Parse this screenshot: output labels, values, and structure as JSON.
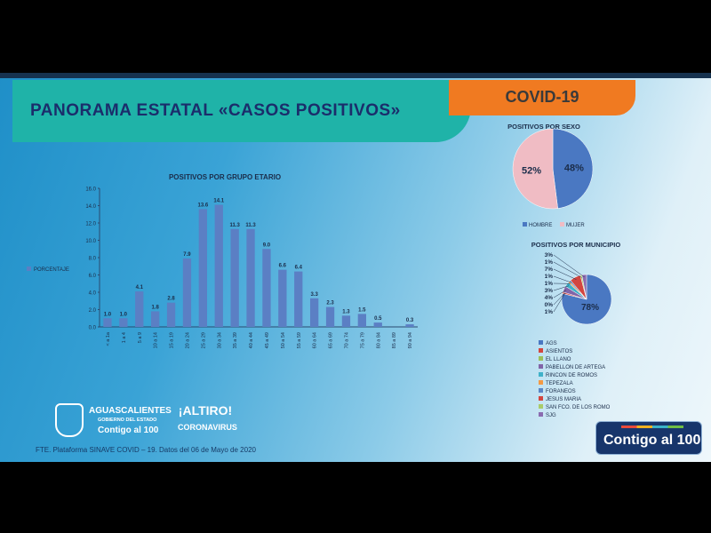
{
  "header": {
    "title": "PANORAMA ESTATAL «CASOS POSITIVOS»",
    "tab": "COVID-19"
  },
  "footer": {
    "source": "FTE. Plataforma SINAVE COVID – 19. Datos del 06 de Mayo de 2020",
    "gov_name": "AGUASCALIENTES",
    "gov_sub": "GOBIERNO DEL ESTADO",
    "gov_slogan": "Contigo al 100",
    "campaign_line1": "¡ALTIRO!",
    "campaign_line2": "CORONAVIRUS",
    "badge": "Contigo al 100"
  },
  "colors": {
    "bar": "#5b7fc4",
    "hombre": "#4a78c2",
    "mujer": "#f0bcc4",
    "title": "#1b2d6b",
    "banner": "#1fb3a8",
    "tab": "#f07a21"
  },
  "chart_data": [
    {
      "type": "bar",
      "title": "POSITIVOS POR GRUPO ETARIO",
      "legend": "PORCENTAJE",
      "legend_placement": "left",
      "categories": [
        "< a 1a",
        "1 a 4",
        "5 a 9",
        "10 a 14",
        "15 a 19",
        "20 a 24",
        "25 a 29",
        "30 a 34",
        "35 a 39",
        "40 a 44",
        "45 a 49",
        "50 a 54",
        "55 a 59",
        "60 a 64",
        "65 a 69",
        "70 a 74",
        "75 a 79",
        "80 a 84",
        "85 a 89",
        "90 a 94"
      ],
      "values": [
        1.0,
        1.0,
        4.1,
        1.8,
        2.8,
        7.9,
        13.6,
        14.1,
        11.3,
        11.3,
        9.0,
        6.6,
        6.4,
        3.3,
        2.3,
        1.3,
        1.5,
        0.5,
        null,
        0.3
      ],
      "data_labels": [
        "1.0",
        "1.0",
        "4.1",
        "1.8",
        "2.8",
        "7.9",
        "13.6",
        "14.1",
        "11.3",
        "11.3",
        "9.0",
        "6.6",
        "6.4",
        "3.3",
        "2.3",
        "1.3",
        "1.5",
        "0.5",
        "",
        "0.3"
      ],
      "yticks": [
        "0.0",
        "2.0",
        "4.0",
        "6.0",
        "8.0",
        "10.0",
        "12.0",
        "14.0",
        "16.0"
      ],
      "ylim": [
        0,
        16
      ],
      "grid": false
    },
    {
      "type": "pie",
      "title": "POSITIVOS POR SEXO",
      "legend_placement": "bottom",
      "slices": [
        {
          "name": "HOMBRE",
          "value": 48,
          "label": "48%",
          "color": "#4a78c2"
        },
        {
          "name": "MUJER",
          "value": 52,
          "label": "52%",
          "color": "#f0bcc4"
        }
      ]
    },
    {
      "type": "pie",
      "title": "POSITIVOS POR MUNICIPIO",
      "legend_placement": "bottom",
      "slices": [
        {
          "name": "AGS",
          "value": 78,
          "label": "78%",
          "color": "#4a78c2"
        },
        {
          "name": "ASIENTOS",
          "value": 1,
          "label": "1%",
          "color": "#d2463f"
        },
        {
          "name": "EL LLANO",
          "value": 0,
          "label": "0%",
          "color": "#9bc15a"
        },
        {
          "name": "PABELLON DE ARTEGA",
          "value": 4,
          "label": "4%",
          "color": "#8165a8"
        },
        {
          "name": "RINCON DE ROMOS",
          "value": 3,
          "label": "3%",
          "color": "#3fb1c9"
        },
        {
          "name": "TEPEZALA",
          "value": 1,
          "label": "1%",
          "color": "#f39a45"
        },
        {
          "name": "FORANEOS",
          "value": 1,
          "label": "1%",
          "color": "#5a86c6"
        },
        {
          "name": "JESUS MARIA",
          "value": 7,
          "label": "7%",
          "color": "#d2463f"
        },
        {
          "name": "SAN FCO. DE LOS ROMO",
          "value": 1,
          "label": "1%",
          "color": "#a9cc6a"
        },
        {
          "name": "SJG",
          "value": 3,
          "label": "3%",
          "color": "#8a6cb0"
        }
      ]
    }
  ]
}
